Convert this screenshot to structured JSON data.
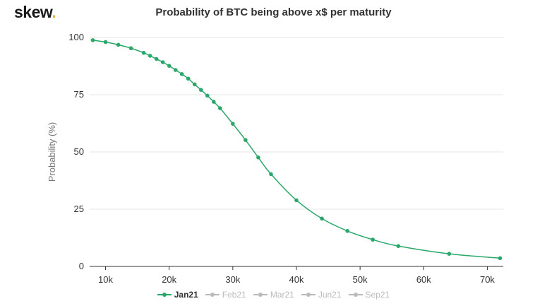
{
  "brand": {
    "name": "skew",
    "dot": "."
  },
  "chart_data": {
    "type": "line",
    "title": "Probability of BTC being above x$ per maturity",
    "xlabel": "",
    "ylabel": "Probability (%)",
    "xlim": [
      7500,
      72500
    ],
    "ylim": [
      0,
      100
    ],
    "xticks": [
      10000,
      20000,
      30000,
      40000,
      50000,
      60000,
      70000
    ],
    "xtick_labels": [
      "10k",
      "20k",
      "30k",
      "40k",
      "50k",
      "60k",
      "70k"
    ],
    "yticks": [
      0,
      25,
      50,
      75,
      100
    ],
    "ytick_labels": [
      "0",
      "25",
      "50",
      "75",
      "100"
    ],
    "grid": "horizontal",
    "legend_position": "bottom",
    "series": [
      {
        "name": "Jan21",
        "visible": true,
        "color": "#2aa769",
        "x": [
          8000,
          10000,
          12000,
          14000,
          16000,
          17000,
          18000,
          19000,
          20000,
          21000,
          22000,
          23000,
          24000,
          25000,
          26000,
          27000,
          28000,
          30000,
          32000,
          34000,
          36000,
          40000,
          44000,
          48000,
          52000,
          56000,
          64000,
          72000
        ],
        "y": [
          98.8,
          98.0,
          96.8,
          95.3,
          93.3,
          92.0,
          90.6,
          89.2,
          87.6,
          85.8,
          84.0,
          82.0,
          79.5,
          77.1,
          74.6,
          71.9,
          69.1,
          62.3,
          55.2,
          47.6,
          40.3,
          28.9,
          20.9,
          15.5,
          11.7,
          8.9,
          5.5,
          3.6
        ]
      },
      {
        "name": "Feb21",
        "visible": false,
        "color": "#cccccc"
      },
      {
        "name": "Mar21",
        "visible": false,
        "color": "#cccccc"
      },
      {
        "name": "Jun21",
        "visible": false,
        "color": "#cccccc"
      },
      {
        "name": "Sep21",
        "visible": false,
        "color": "#cccccc"
      }
    ]
  }
}
